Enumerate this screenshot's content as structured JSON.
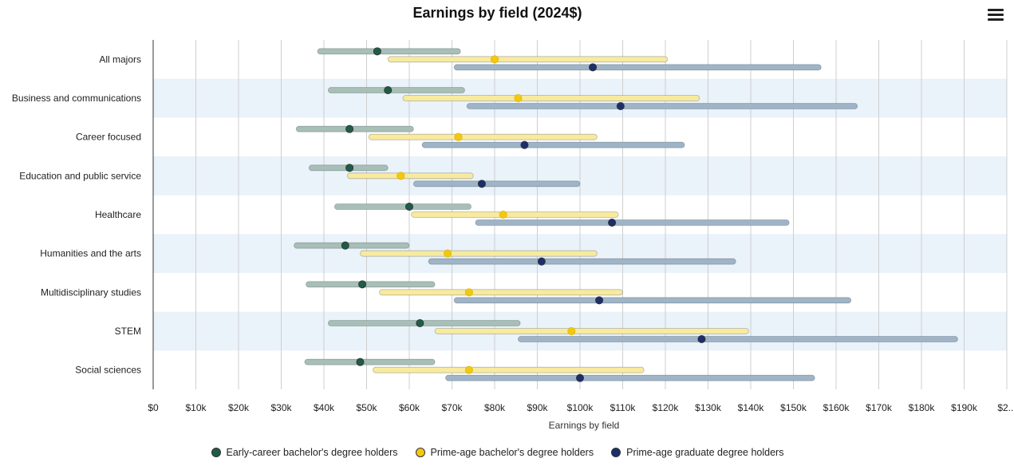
{
  "chart_data": {
    "type": "dumbbell",
    "title": "Earnings by field (2024$)",
    "xlabel": "Earnings by field",
    "ylabel": "",
    "xlim": [
      0,
      200000
    ],
    "x_ticks": [
      "$0",
      "$10k",
      "$20k",
      "$30k",
      "$40k",
      "$50k",
      "$60k",
      "$70k",
      "$80k",
      "$90k",
      "$100k",
      "$110k",
      "$120k",
      "$130k",
      "$140k",
      "$150k",
      "$160k",
      "$170k",
      "$180k",
      "$190k",
      "$2..."
    ],
    "categories": [
      "All majors",
      "Business and communications",
      "Career focused",
      "Education and public service",
      "Healthcare",
      "Humanities and the arts",
      "Multidisciplinary studies",
      "STEM",
      "Social sciences"
    ],
    "series": [
      {
        "name": "Early-career bachelor's degree holders",
        "color": "#1f5c45",
        "bar_color": "#a7bfb6",
        "low": [
          38500,
          41000,
          33500,
          36500,
          42500,
          33000,
          35800,
          41000,
          35500
        ],
        "median": [
          52500,
          55000,
          46000,
          46000,
          60000,
          45000,
          49000,
          62500,
          48500
        ],
        "high": [
          72000,
          73000,
          61000,
          55000,
          74500,
          60000,
          66000,
          86000,
          66000
        ]
      },
      {
        "name": "Prime-age bachelor's degree holders",
        "color": "#f2c811",
        "bar_color": "#f8ea9e",
        "low": [
          55000,
          58500,
          50500,
          45500,
          60500,
          48500,
          53000,
          66000,
          51500
        ],
        "median": [
          80000,
          85500,
          71500,
          58000,
          82000,
          69000,
          74000,
          98000,
          74000
        ],
        "high": [
          120500,
          128000,
          104000,
          75000,
          109000,
          104000,
          110000,
          139500,
          115000
        ]
      },
      {
        "name": "Prime-age graduate degree holders",
        "color": "#1a2f6b",
        "bar_color": "#9fb4c7",
        "low": [
          70500,
          73500,
          63000,
          61000,
          75500,
          64500,
          70500,
          85500,
          68500
        ],
        "median": [
          103000,
          109500,
          87000,
          77000,
          107500,
          91000,
          104500,
          128500,
          100000
        ],
        "high": [
          156500,
          165000,
          124500,
          100000,
          149000,
          136500,
          163500,
          188500,
          155000
        ]
      }
    ],
    "band_color": "#eaf2fa",
    "legend_position": "bottom"
  },
  "toolbar": {
    "menu_icon": "hamburger-menu-icon"
  }
}
